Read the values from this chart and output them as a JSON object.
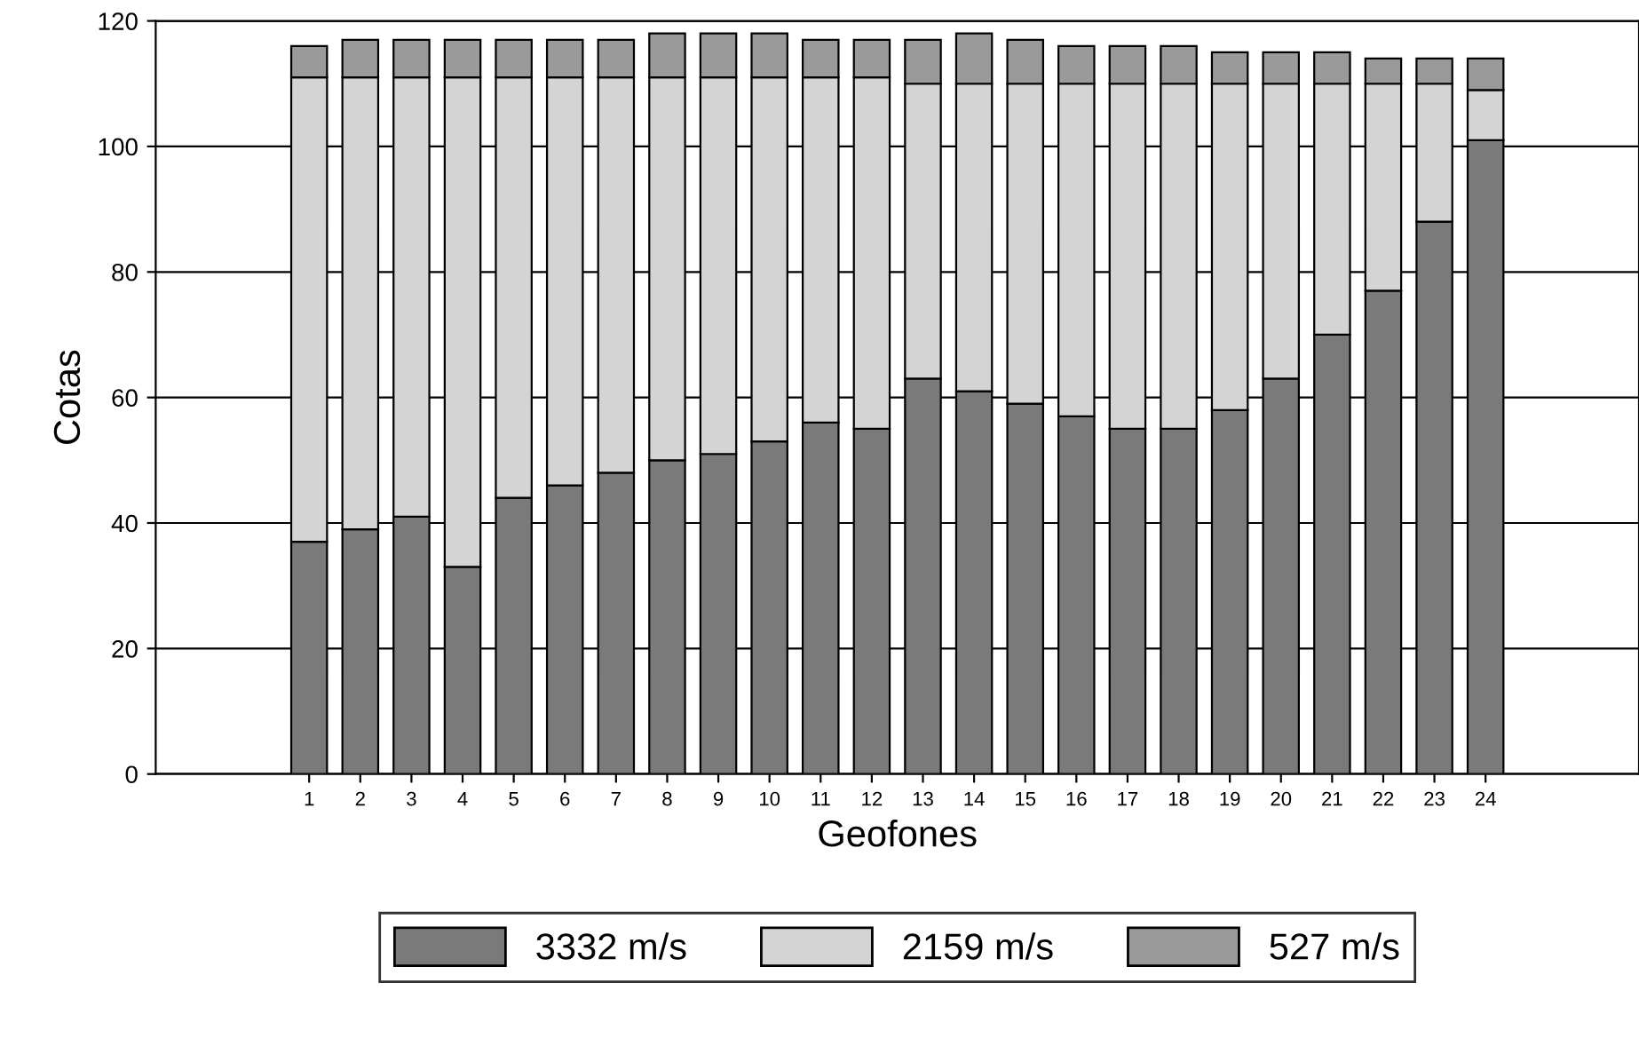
{
  "chart_data": {
    "type": "bar",
    "stacked": true,
    "xlabel": "Geofones",
    "ylabel": "Cotas",
    "x": [
      1,
      2,
      3,
      4,
      5,
      6,
      7,
      8,
      9,
      10,
      11,
      12,
      13,
      14,
      15,
      16,
      17,
      18,
      19,
      20,
      21,
      22,
      23,
      24
    ],
    "xlim": [
      -2,
      27
    ],
    "xticks": [
      1,
      2,
      3,
      4,
      5,
      6,
      7,
      8,
      9,
      10,
      11,
      12,
      13,
      14,
      15,
      16,
      17,
      18,
      19,
      20,
      21,
      22,
      23,
      24
    ],
    "series": [
      {
        "name": "3332 m/s",
        "color": "#7a7a7a",
        "values": [
          37,
          39,
          41,
          33,
          44,
          46,
          48,
          50,
          51,
          53,
          56,
          55,
          63,
          61,
          59,
          57,
          55,
          55,
          58,
          63,
          70,
          77,
          88,
          101
        ]
      },
      {
        "name": "2159 m/s",
        "color": "#d4d4d4",
        "values": [
          74,
          72,
          70,
          78,
          67,
          65,
          63,
          61,
          60,
          58,
          55,
          56,
          47,
          49,
          51,
          53,
          55,
          55,
          52,
          47,
          40,
          33,
          22,
          8
        ]
      },
      {
        "name": "527 m/s",
        "color": "#9a9a9a",
        "values": [
          5,
          6,
          6,
          6,
          6,
          6,
          6,
          7,
          7,
          7,
          6,
          6,
          7,
          8,
          7,
          6,
          6,
          6,
          5,
          5,
          5,
          4,
          4,
          5
        ]
      }
    ],
    "ylim": [
      0,
      120
    ],
    "yticks": [
      0,
      20,
      40,
      60,
      80,
      100,
      120
    ],
    "grid": "y",
    "legend": "bottom"
  }
}
